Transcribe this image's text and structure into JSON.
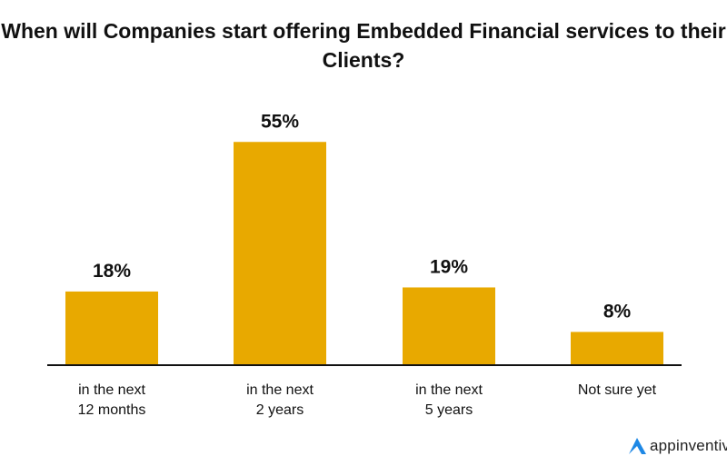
{
  "chart_data": {
    "type": "bar",
    "title": "When will Companies start offering Embedded Financial services to their Clients?",
    "categories": [
      [
        "in the next",
        "12 months"
      ],
      [
        "in the next",
        "2 years"
      ],
      [
        "in the next",
        "5 years"
      ],
      [
        "Not sure yet"
      ]
    ],
    "values": [
      18,
      55,
      19,
      8
    ],
    "data_labels": [
      "18%",
      "55%",
      "19%",
      "8%"
    ],
    "xlabel": "",
    "ylabel": "",
    "ylim": [
      0,
      60
    ],
    "grid": false,
    "bar_color": "#E8A900"
  },
  "brand": {
    "name": "appinventiv",
    "color": "#1E88E5"
  }
}
